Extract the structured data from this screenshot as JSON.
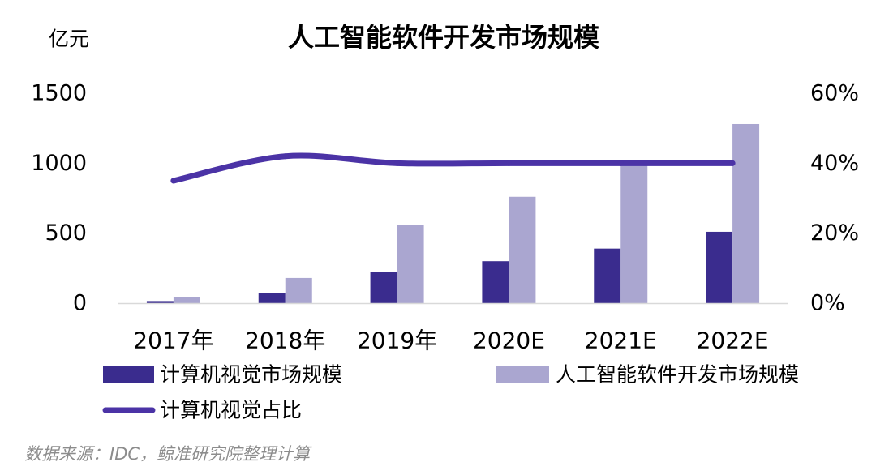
{
  "chart_data": {
    "type": "bar",
    "title": "人工智能软件开发市场规模",
    "ylabel": "亿元",
    "categories": [
      "2017年",
      "2018年",
      "2019年",
      "2020E",
      "2021E",
      "2022E"
    ],
    "series": [
      {
        "name": "计算机视觉市场规模",
        "type": "bar",
        "axis": "left",
        "color": "#3a2c8e",
        "values": [
          15,
          75,
          225,
          300,
          390,
          510
        ]
      },
      {
        "name": "人工智能软件开发市场规模",
        "type": "bar",
        "axis": "left",
        "color": "#aaa6d0",
        "values": [
          45,
          180,
          560,
          760,
          990,
          1280
        ]
      },
      {
        "name": "计算机视觉占比",
        "type": "line",
        "axis": "right",
        "unit": "%",
        "smooth": true,
        "color": "#4b33a6",
        "values": [
          35,
          42,
          40,
          40,
          40,
          40
        ]
      }
    ],
    "ylim": [
      0,
      1500
    ],
    "yticks": [
      "0",
      "500",
      "1000",
      "1500"
    ],
    "y2lim": [
      0,
      60
    ],
    "y2ticks": [
      "0%",
      "20%",
      "40%",
      "60%"
    ],
    "grid": false,
    "legend": "bottom"
  },
  "source": "数据来源：IDC，鲸准研究院整理计算"
}
